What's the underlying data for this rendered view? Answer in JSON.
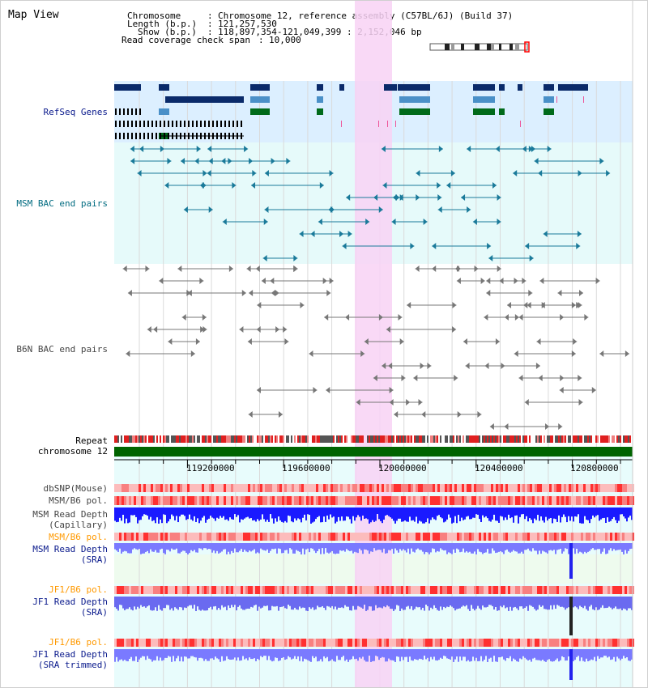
{
  "window_title": "Map View",
  "info": {
    "chromosome_key": "Chromosome",
    "chromosome_val": "Chromosome 12, reference assembly (C57BL/6J) (Build 37)",
    "length_key": "Length (b.p.)",
    "length_val": "121,257,530",
    "show_key": "Show (b.p.)",
    "show_val": "118,897,354-121,049,399 : 2,152,046 bp",
    "coverage_key": "Read coverage check span",
    "coverage_val": "10,000"
  },
  "tracks": {
    "refseq": "RefSeq Genes",
    "msm_bac": "MSM BAC end pairs",
    "b6n_bac": "B6N BAC end pairs",
    "repeat": "Repeat",
    "chrom": "chromosome 12",
    "dbsnp": "dbSNP(Mouse)",
    "msm_b6_pol": "MSM/B6 pol.",
    "msm_depth_cap_1": "MSM Read Depth",
    "msm_depth_cap_2": "(Capillary)",
    "msm_b6_pol2": "MSM/B6 pol.",
    "msm_depth_sra_1": "MSM Read Depth",
    "msm_depth_sra_2": "(SRA)",
    "jf1_pol": "JF1/B6 pol.",
    "jf1_depth_1": "JF1 Read Depth",
    "jf1_depth_2": "(SRA)",
    "jf1_pol2": "JF1/B6 pol.",
    "jf1_trim_1": "JF1 Read Depth",
    "jf1_trim_2": "(SRA trimmed)"
  },
  "axis_ticks": [
    "119200000",
    "119600000",
    "120000000",
    "120400000",
    "120800000"
  ],
  "colors": {
    "refseq_bg": "#dcefff",
    "msm_bg": "#e6fafa",
    "b6n_bg": "#ffffff",
    "highlight": "#f8d2f4",
    "chrom_bar": "#006400",
    "label_navy": "#0a1a8c",
    "label_orange": "#ff9900",
    "label_teal": "#006b80",
    "label_gray": "#444444"
  }
}
